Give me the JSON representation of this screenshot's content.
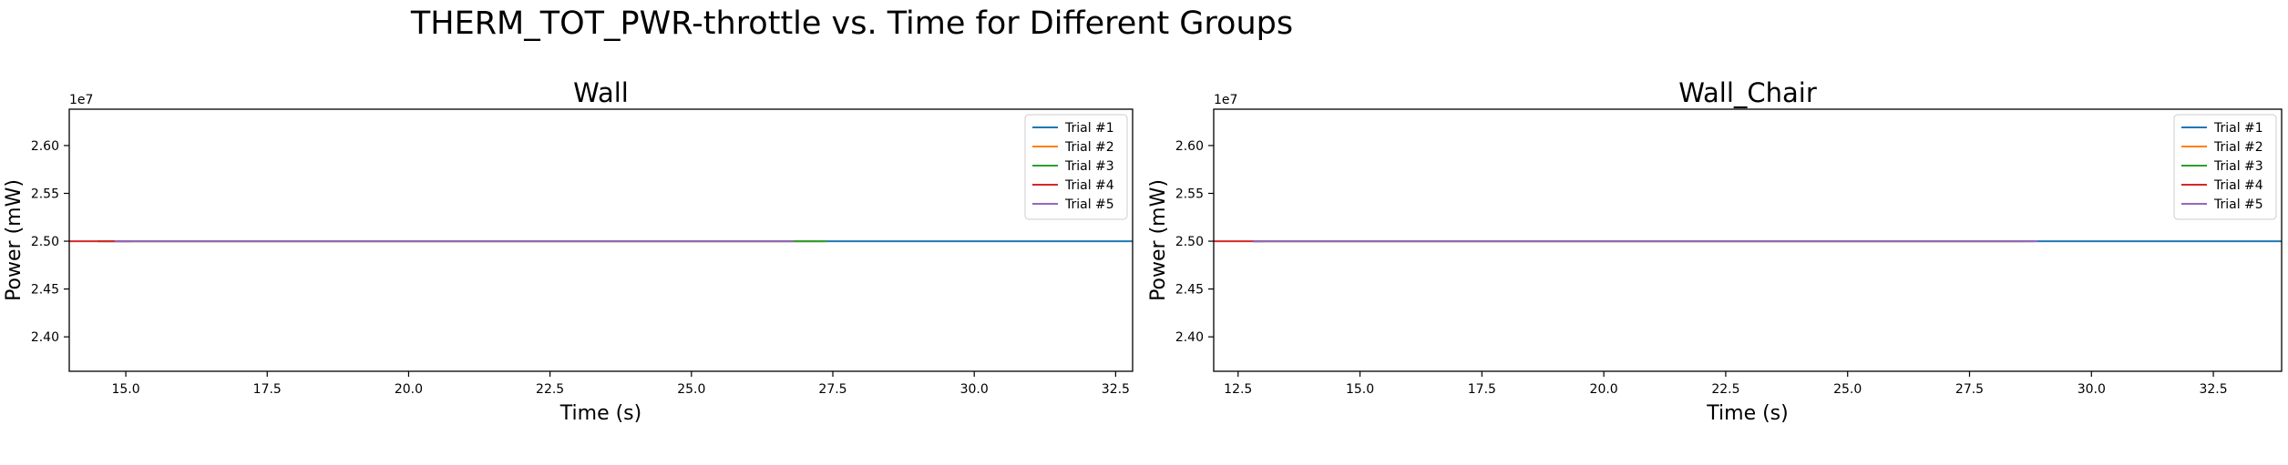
{
  "figure": {
    "title": "THERM_TOT_PWR-throttle vs. Time for Different Groups"
  },
  "chart_data": [
    {
      "type": "line",
      "title": "Wall",
      "xlabel": "Time (s)",
      "ylabel": "Power (mW)",
      "offset_label": "1e7",
      "xlim": [
        14.0,
        32.8
      ],
      "ylim": [
        2.364,
        2.638
      ],
      "x_ticks": [
        15.0,
        17.5,
        20.0,
        22.5,
        25.0,
        27.5,
        30.0,
        32.5
      ],
      "x_tick_labels": [
        "15.0",
        "17.5",
        "20.0",
        "22.5",
        "25.0",
        "27.5",
        "30.0",
        "32.5"
      ],
      "y_ticks": [
        2.4,
        2.45,
        2.5,
        2.55,
        2.6
      ],
      "y_tick_labels": [
        "2.40",
        "2.45",
        "2.50",
        "2.55",
        "2.60"
      ],
      "grid": false,
      "legend_position": "top-right",
      "series": [
        {
          "name": "Trial #1",
          "color": "#1f77b4",
          "x": [
            14.5,
            32.8
          ],
          "y": [
            2.5,
            2.5
          ]
        },
        {
          "name": "Trial #2",
          "color": "#ff7f0e",
          "x": [
            14.8,
            27.3
          ],
          "y": [
            2.5,
            2.5
          ]
        },
        {
          "name": "Trial #3",
          "color": "#2ca02c",
          "x": [
            14.5,
            27.4
          ],
          "y": [
            2.5,
            2.5
          ]
        },
        {
          "name": "Trial #4",
          "color": "#d62728",
          "x": [
            14.0,
            15.1
          ],
          "y": [
            2.5,
            2.5
          ]
        },
        {
          "name": "Trial #5",
          "color": "#9467bd",
          "x": [
            14.8,
            26.8
          ],
          "y": [
            2.5,
            2.5
          ]
        }
      ]
    },
    {
      "type": "line",
      "title": "Wall_Chair",
      "xlabel": "Time (s)",
      "ylabel": "Power (mW)",
      "offset_label": "1e7",
      "xlim": [
        12.0,
        33.9
      ],
      "ylim": [
        2.364,
        2.638
      ],
      "x_ticks": [
        12.5,
        15.0,
        17.5,
        20.0,
        22.5,
        25.0,
        27.5,
        30.0,
        32.5
      ],
      "x_tick_labels": [
        "12.5",
        "15.0",
        "17.5",
        "20.0",
        "22.5",
        "25.0",
        "27.5",
        "30.0",
        "32.5"
      ],
      "y_ticks": [
        2.4,
        2.45,
        2.5,
        2.55,
        2.6
      ],
      "y_tick_labels": [
        "2.40",
        "2.45",
        "2.50",
        "2.55",
        "2.60"
      ],
      "grid": false,
      "legend_position": "top-right",
      "series": [
        {
          "name": "Trial #1",
          "color": "#1f77b4",
          "x": [
            12.8,
            33.9
          ],
          "y": [
            2.5,
            2.5
          ]
        },
        {
          "name": "Trial #2",
          "color": "#ff7f0e",
          "x": [
            12.8,
            28.6
          ],
          "y": [
            2.5,
            2.5
          ]
        },
        {
          "name": "Trial #3",
          "color": "#2ca02c",
          "x": [
            12.8,
            28.8
          ],
          "y": [
            2.5,
            2.5
          ]
        },
        {
          "name": "Trial #4",
          "color": "#d62728",
          "x": [
            12.0,
            13.0
          ],
          "y": [
            2.5,
            2.5
          ]
        },
        {
          "name": "Trial #5",
          "color": "#9467bd",
          "x": [
            12.8,
            28.9
          ],
          "y": [
            2.5,
            2.5
          ]
        }
      ]
    }
  ]
}
